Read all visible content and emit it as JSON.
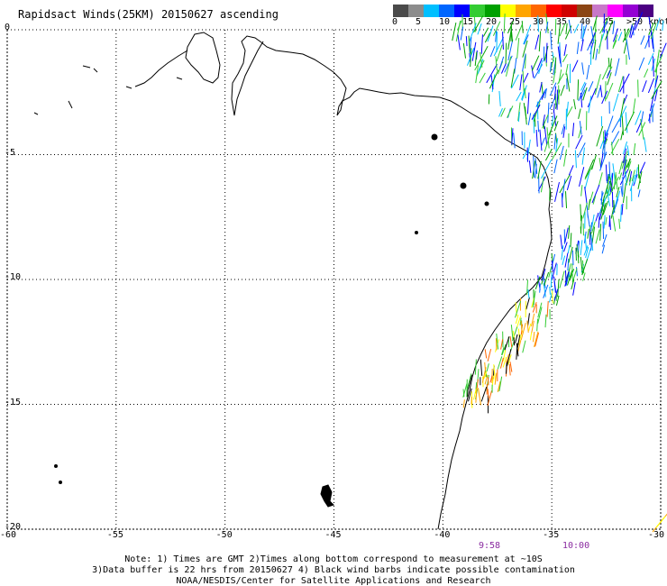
{
  "title": "Rapidsact Winds(25KM) 20150627 ascending",
  "legend": {
    "colors": [
      "#4a4a4a",
      "#8c8c8c",
      "#00bfff",
      "#0066ff",
      "#0000ff",
      "#33cc33",
      "#00a000",
      "#ffff00",
      "#ffa500",
      "#ff6600",
      "#ff0000",
      "#d00000",
      "#8b4513",
      "#c878c8",
      "#ff00ff",
      "#9400d3",
      "#4b0082"
    ],
    "labels": [
      "0",
      "5",
      "10",
      "15",
      "20",
      "25",
      "30",
      "35",
      "40",
      "45",
      ">50 knots"
    ]
  },
  "axes": {
    "x_ticks": [
      "-60",
      "-55",
      "-50",
      "-45",
      "-40",
      "-35",
      "-30"
    ],
    "y_ticks": [
      "0",
      "-5",
      "-10",
      "-15",
      "-20"
    ],
    "x_range": [
      -60,
      -30
    ],
    "y_range": [
      -20,
      0
    ]
  },
  "time_labels": [
    "9:58",
    "10:00"
  ],
  "notes": [
    "Note: 1) Times are GMT 2)Times along bottom correspond to measurement at ~10S",
    "3)Data buffer is 22 hrs from 20150627 4) Black wind barbs indicate possible contamination",
    "NOAA/NESDIS/Center for Satellite Applications and Research"
  ]
}
